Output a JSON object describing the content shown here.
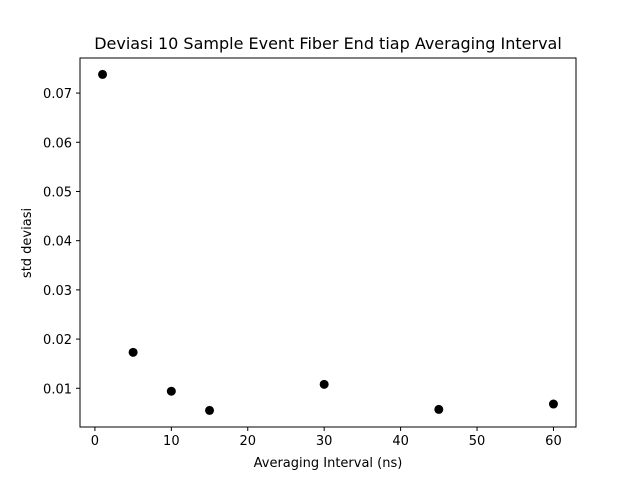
{
  "chart_data": {
    "type": "scatter",
    "title": "Deviasi 10 Sample Event Fiber End tiap Averaging Interval",
    "xlabel": "Averaging Interval (ns)",
    "ylabel": "std deviasi",
    "xlim": [
      -1.95,
      62.95
    ],
    "ylim": [
      0.00213,
      0.07713
    ],
    "x_ticks": [
      0,
      10,
      20,
      30,
      40,
      50,
      60
    ],
    "x_tick_labels": [
      "0",
      "10",
      "20",
      "30",
      "40",
      "50",
      "60"
    ],
    "y_ticks": [
      0.01,
      0.02,
      0.03,
      0.04,
      0.05,
      0.06,
      0.07
    ],
    "y_tick_labels": [
      "0.01",
      "0.02",
      "0.03",
      "0.04",
      "0.05",
      "0.06",
      "0.07"
    ],
    "grid": false,
    "legend": false,
    "marker_color": "#000000",
    "series": [
      {
        "points": [
          {
            "x": 1,
            "y": 0.0738
          },
          {
            "x": 5,
            "y": 0.0173
          },
          {
            "x": 10,
            "y": 0.0094
          },
          {
            "x": 15,
            "y": 0.0055
          },
          {
            "x": 30,
            "y": 0.0108
          },
          {
            "x": 45,
            "y": 0.0057
          },
          {
            "x": 60,
            "y": 0.0068
          }
        ]
      }
    ]
  }
}
